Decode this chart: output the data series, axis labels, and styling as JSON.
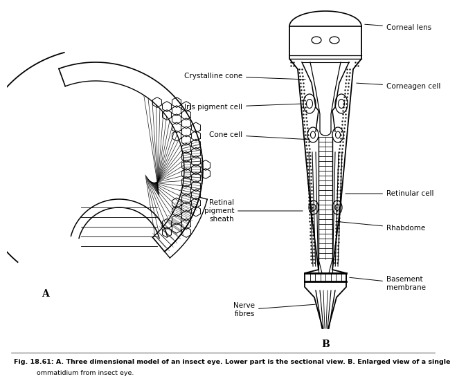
{
  "background_color": "#ffffff",
  "figure_width": 6.24,
  "figure_height": 5.44,
  "lc": "#000000",
  "caption_line1": "Fig. 18.61: A. Three dimensional model of an insect eye. Lower part is the sectional view. B. Enlarged view of a single",
  "caption_line2": "           ommatidium from insect eye.",
  "label_A": "A",
  "label_B": "B"
}
